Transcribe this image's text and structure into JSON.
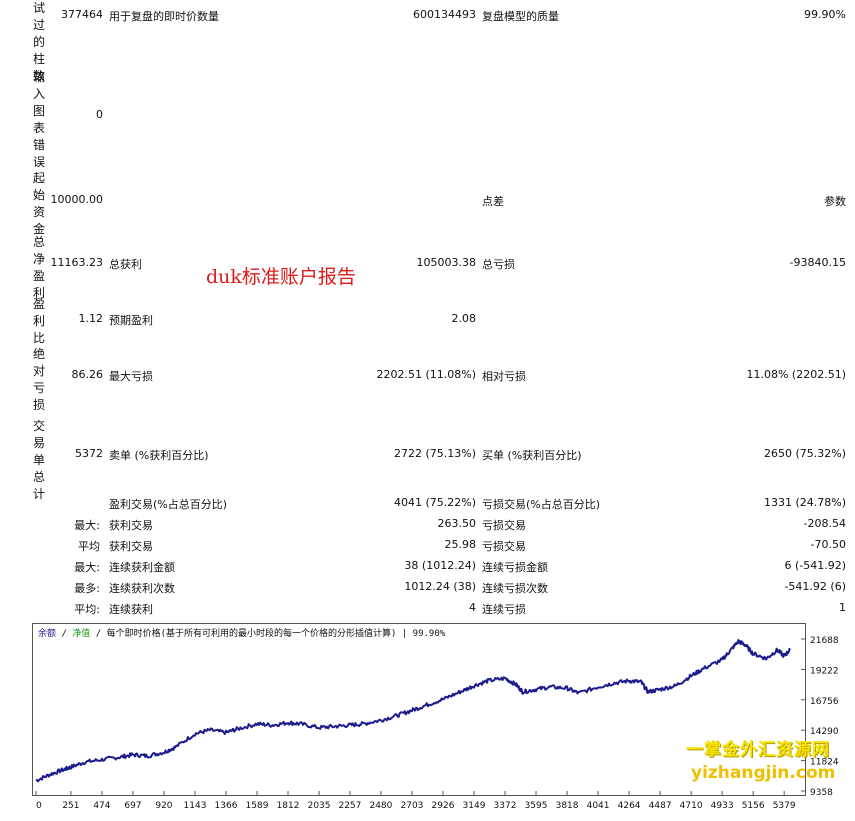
{
  "left_labels": {
    "bars_tested": "试过的柱数",
    "mismatched_errors": "输入图表错误",
    "initial_deposit": "起始资金",
    "total_net_profit": "总净盈利",
    "profit_factor": "盈利比",
    "absolute_drawdown": "绝对亏损",
    "total_trades": "交易单总计"
  },
  "rows": {
    "bars": {
      "value": "377464",
      "label2": "用于复盘的即时价数量",
      "value2": "600134493",
      "label3": "复盘模型的质量",
      "value3": "99.90%"
    },
    "errors": {
      "value": "0"
    },
    "deposit": {
      "value": "10000.00",
      "label3": "点差",
      "value3": "参数"
    },
    "net": {
      "value": "11163.23",
      "label2": "总获利",
      "value2": "105003.38",
      "label3": "总亏损",
      "value3": "-93840.15"
    },
    "pf": {
      "value": "1.12",
      "label2": "预期盈利",
      "value2": "2.08"
    },
    "dd": {
      "value": "86.26",
      "label2": "最大亏损",
      "value2": "2202.51 (11.08%)",
      "label3": "相对亏损",
      "value3": "11.08% (2202.51)"
    },
    "trades": {
      "value": "5372",
      "label2": "卖单 (%获利百分比)",
      "value2": "2722 (75.13%)",
      "label3": "买单 (%获利百分比)",
      "value3": "2650 (75.32%)"
    },
    "profit_trades": {
      "label2": "盈利交易(%占总百分比)",
      "value2": "4041 (75.22%)",
      "label3": "亏损交易(%占总百分比)",
      "value3": "1331 (24.78%)"
    },
    "largest": {
      "label1": "最大:",
      "label2": "获利交易",
      "value2": "263.50",
      "label3": "亏损交易",
      "value3": "-208.54"
    },
    "average": {
      "label1": "平均",
      "label2": "获利交易",
      "value2": "25.98",
      "label3": "亏损交易",
      "value3": "-70.50"
    },
    "max_consec": {
      "label1": "最大:",
      "label2": "连续获利金额",
      "value2": "38 (1012.24)",
      "label3": "连续亏损金额",
      "value3": "6 (-541.92)"
    },
    "maximal": {
      "label1": "最多:",
      "label2": "连续获利次数",
      "value2": "1012.24 (38)",
      "label3": "连续亏损次数",
      "value3": "-541.92 (6)"
    },
    "avg_consec": {
      "label1": "平均:",
      "label2": "连续获利",
      "value2": "4",
      "label3": "连续亏损",
      "value3": "1"
    }
  },
  "overlay_title": "duk标准账户报告",
  "chart_header": {
    "balance": "余额",
    "equity": "净值",
    "desc": "每个即时价格(基于所有可利用的最小时段的每一个价格的分形插值计算)",
    "quality": "99.90%",
    "sep": "/"
  },
  "chart_data": {
    "type": "line",
    "x_ticks": [
      "0",
      "251",
      "474",
      "697",
      "920",
      "1143",
      "1366",
      "1589",
      "1812",
      "2035",
      "2257",
      "2480",
      "2703",
      "2926",
      "3149",
      "3372",
      "3595",
      "3818",
      "4041",
      "4264",
      "4487",
      "4710",
      "4933",
      "5156",
      "5379"
    ],
    "y_ticks": [
      "21688",
      "19222",
      "16756",
      "14290",
      "11824",
      "9358"
    ],
    "ylim": [
      9358,
      21688
    ],
    "xlim": [
      0,
      5500
    ],
    "series": [
      {
        "color": "#1c1c8c",
        "x": [
          0,
          100,
          200,
          251,
          350,
          474,
          600,
          697,
          800,
          920,
          1000,
          1143,
          1250,
          1366,
          1450,
          1589,
          1700,
          1812,
          1900,
          2035,
          2150,
          2257,
          2350,
          2480,
          2600,
          2703,
          2800,
          2926,
          3050,
          3149,
          3250,
          3372,
          3450,
          3500,
          3595,
          3700,
          3818,
          3900,
          4041,
          4150,
          4264,
          4350,
          4400,
          4487,
          4600,
          4710,
          4800,
          4933,
          4980,
          5050,
          5100,
          5156,
          5250,
          5330,
          5379,
          5420
        ],
        "y": [
          10200,
          10700,
          11100,
          11300,
          11700,
          11900,
          12100,
          12300,
          12200,
          12500,
          12900,
          14000,
          14300,
          14100,
          14400,
          14800,
          14700,
          14900,
          14800,
          14500,
          14600,
          14700,
          14800,
          15100,
          15500,
          15900,
          16300,
          16800,
          17400,
          17900,
          18300,
          18500,
          18000,
          17400,
          17600,
          17800,
          17700,
          17300,
          17800,
          18100,
          18300,
          18200,
          17400,
          17600,
          17900,
          18700,
          19300,
          20000,
          20600,
          21500,
          21200,
          20500,
          20100,
          20800,
          20300,
          20800
        ]
      }
    ]
  },
  "watermark": {
    "cn": "一掌金外汇资源网",
    "url": "yizhangjin.com"
  }
}
